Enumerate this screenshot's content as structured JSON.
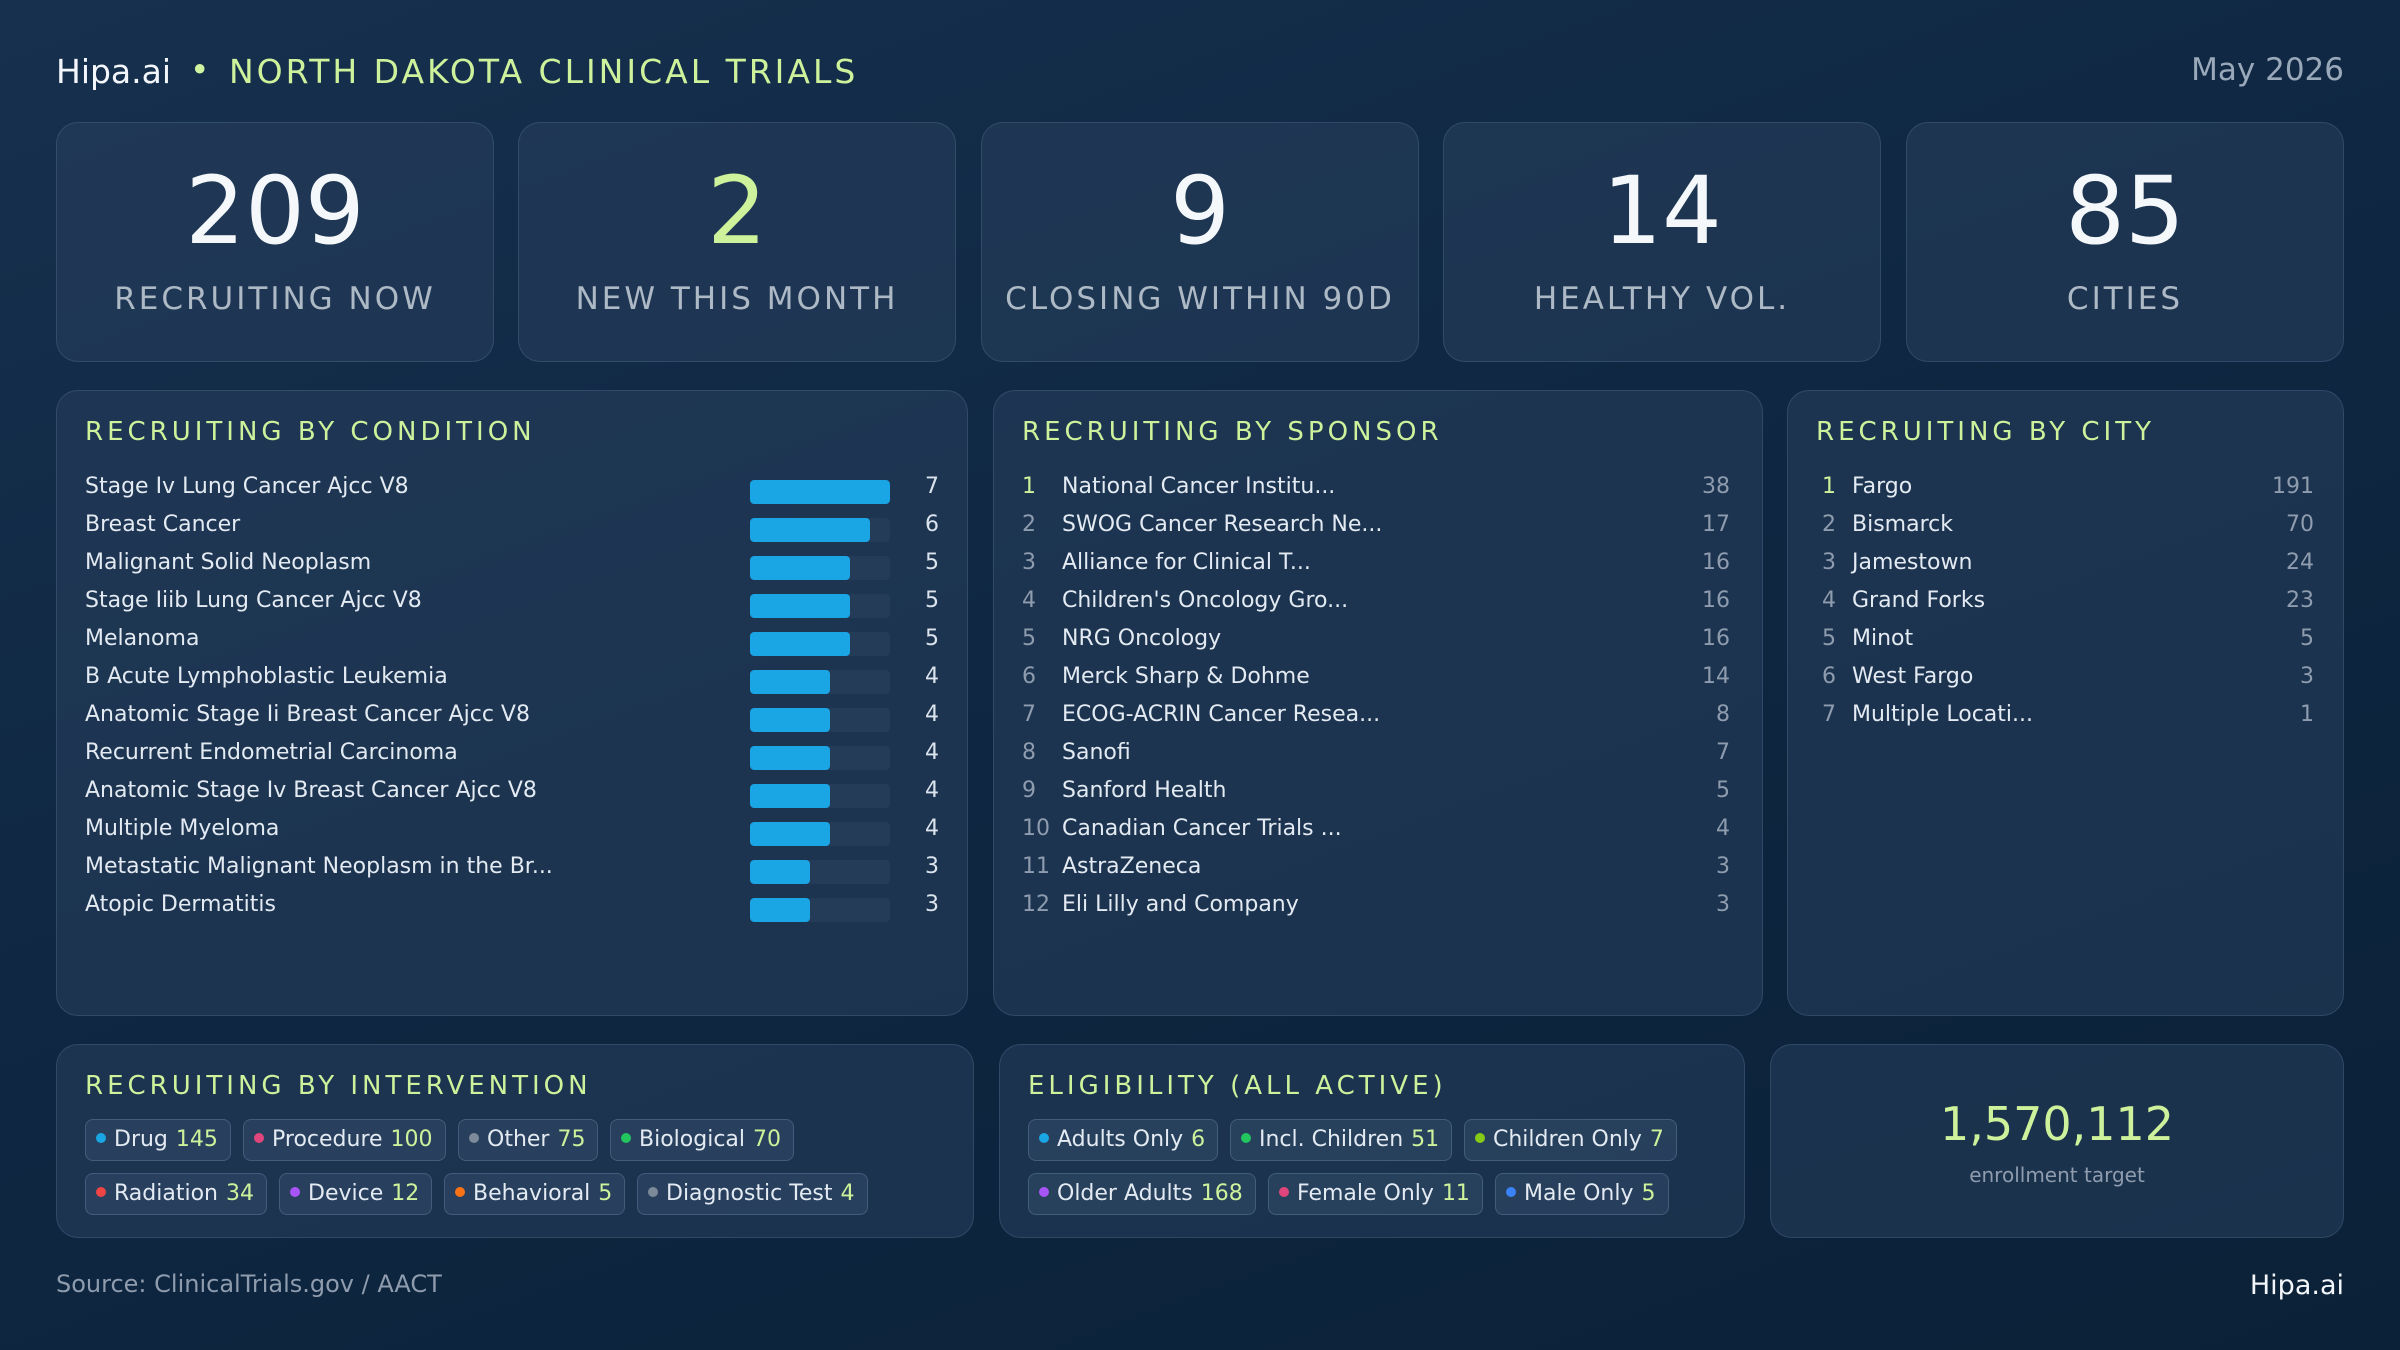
{
  "header": {
    "brand": "Hipa.ai",
    "separator": "•",
    "title": "NORTH DAKOTA CLINICAL TRIALS",
    "date": "May 2026"
  },
  "stats": [
    {
      "value": "209",
      "label": "RECRUITING NOW"
    },
    {
      "value": "2",
      "label": "NEW THIS MONTH"
    },
    {
      "value": "9",
      "label": "CLOSING WITHIN 90D"
    },
    {
      "value": "14",
      "label": "HEALTHY VOL."
    },
    {
      "value": "85",
      "label": "CITIES"
    }
  ],
  "condition": {
    "title": "RECRUITING BY CONDITION",
    "max": 7,
    "items": [
      {
        "name": "Stage Iv Lung Cancer Ajcc V8",
        "count": 7
      },
      {
        "name": "Breast Cancer",
        "count": 6
      },
      {
        "name": "Malignant Solid Neoplasm",
        "count": 5
      },
      {
        "name": "Stage Iiib Lung Cancer Ajcc V8",
        "count": 5
      },
      {
        "name": "Melanoma",
        "count": 5
      },
      {
        "name": "B Acute Lymphoblastic Leukemia",
        "count": 4
      },
      {
        "name": "Anatomic Stage Ii Breast Cancer Ajcc V8",
        "count": 4
      },
      {
        "name": "Recurrent Endometrial Carcinoma",
        "count": 4
      },
      {
        "name": "Anatomic Stage Iv Breast Cancer Ajcc V8",
        "count": 4
      },
      {
        "name": "Multiple Myeloma",
        "count": 4
      },
      {
        "name": "Metastatic Malignant Neoplasm in the Br...",
        "count": 3
      },
      {
        "name": "Atopic Dermatitis",
        "count": 3
      }
    ]
  },
  "sponsor": {
    "title": "RECRUITING BY SPONSOR",
    "items": [
      {
        "rank": "1",
        "name": "National Cancer Institu...",
        "count": "38"
      },
      {
        "rank": "2",
        "name": "SWOG Cancer Research Ne...",
        "count": "17"
      },
      {
        "rank": "3",
        "name": "Alliance for Clinical T...",
        "count": "16"
      },
      {
        "rank": "4",
        "name": "Children's Oncology Gro...",
        "count": "16"
      },
      {
        "rank": "5",
        "name": "NRG Oncology",
        "count": "16"
      },
      {
        "rank": "6",
        "name": "Merck Sharp & Dohme",
        "count": "14"
      },
      {
        "rank": "7",
        "name": "ECOG-ACRIN Cancer Resea...",
        "count": "8"
      },
      {
        "rank": "8",
        "name": "Sanofi",
        "count": "7"
      },
      {
        "rank": "9",
        "name": "Sanford Health",
        "count": "5"
      },
      {
        "rank": "10",
        "name": "Canadian Cancer Trials ...",
        "count": "4"
      },
      {
        "rank": "11",
        "name": "AstraZeneca",
        "count": "3"
      },
      {
        "rank": "12",
        "name": "Eli Lilly and Company",
        "count": "3"
      }
    ]
  },
  "city": {
    "title": "RECRUITING BY CITY",
    "items": [
      {
        "rank": "1",
        "name": "Fargo",
        "count": "191"
      },
      {
        "rank": "2",
        "name": "Bismarck",
        "count": "70"
      },
      {
        "rank": "3",
        "name": "Jamestown",
        "count": "24"
      },
      {
        "rank": "4",
        "name": "Grand Forks",
        "count": "23"
      },
      {
        "rank": "5",
        "name": "Minot",
        "count": "5"
      },
      {
        "rank": "6",
        "name": "West Fargo",
        "count": "3"
      },
      {
        "rank": "7",
        "name": "Multiple Locati...",
        "count": "1"
      }
    ]
  },
  "intervention": {
    "title": "RECRUITING BY INTERVENTION",
    "chips": [
      {
        "label": "Drug",
        "value": "145",
        "color": "#1aa6e4"
      },
      {
        "label": "Procedure",
        "value": "100",
        "color": "#e0457b"
      },
      {
        "label": "Other",
        "value": "75",
        "color": "#7d8a99"
      },
      {
        "label": "Biological",
        "value": "70",
        "color": "#22c55e"
      },
      {
        "label": "Radiation",
        "value": "34",
        "color": "#ef4444"
      },
      {
        "label": "Device",
        "value": "12",
        "color": "#a855f7"
      },
      {
        "label": "Behavioral",
        "value": "5",
        "color": "#f97316"
      },
      {
        "label": "Diagnostic Test",
        "value": "4",
        "color": "#7d8a99"
      }
    ]
  },
  "eligibility": {
    "title": "ELIGIBILITY (ALL ACTIVE)",
    "chips": [
      {
        "label": "Adults Only",
        "value": "6",
        "color": "#1aa6e4"
      },
      {
        "label": "Incl. Children",
        "value": "51",
        "color": "#22c55e"
      },
      {
        "label": "Children Only",
        "value": "7",
        "color": "#84cc16"
      },
      {
        "label": "Older Adults",
        "value": "168",
        "color": "#a855f7"
      },
      {
        "label": "Female Only",
        "value": "11",
        "color": "#e0457b"
      },
      {
        "label": "Male Only",
        "value": "5",
        "color": "#3b82f6"
      }
    ]
  },
  "enrollment": {
    "value": "1,570,112",
    "label": "enrollment target"
  },
  "footer": {
    "source": "Source: ClinicalTrials.gov / AACT",
    "brand": "Hipa.ai"
  }
}
